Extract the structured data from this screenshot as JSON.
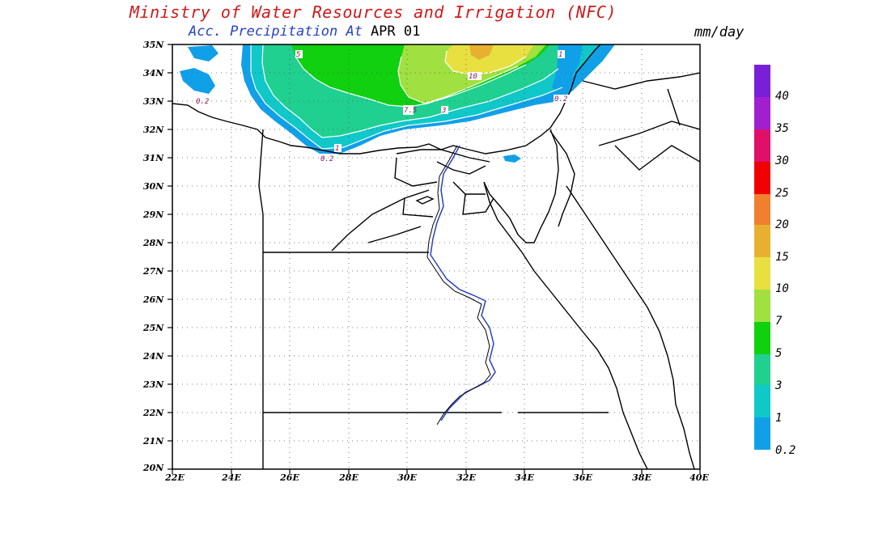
{
  "header": {
    "title": "Ministry of Water Resources and Irrigation (NFC)",
    "subtitle": "Acc. Precipitation  At",
    "date": "APR 01",
    "units": "mm/day"
  },
  "axes": {
    "lat_labels": [
      "35N",
      "34N",
      "33N",
      "32N",
      "31N",
      "30N",
      "29N",
      "28N",
      "27N",
      "26N",
      "25N",
      "24N",
      "23N",
      "22N",
      "21N",
      "20N"
    ],
    "lon_labels": [
      "22E",
      "24E",
      "26E",
      "28E",
      "30E",
      "32E",
      "34E",
      "36E",
      "38E",
      "40E"
    ]
  },
  "colorbar": {
    "levels": [
      "40",
      "35",
      "30",
      "25",
      "20",
      "15",
      "10",
      "7",
      "5",
      "3",
      "1",
      "0.2"
    ],
    "colors": [
      "#7a1fd8",
      "#a020d0",
      "#e0106a",
      "#f00000",
      "#f08030",
      "#e8b030",
      "#e8e040",
      "#a0e040",
      "#10d010",
      "#20d090",
      "#10c8c8",
      "#10a0e8"
    ]
  },
  "contour_labels": [
    "5",
    "10",
    "1",
    "0.2",
    "7.5",
    "3",
    "1",
    "0.2",
    "0.2"
  ]
}
